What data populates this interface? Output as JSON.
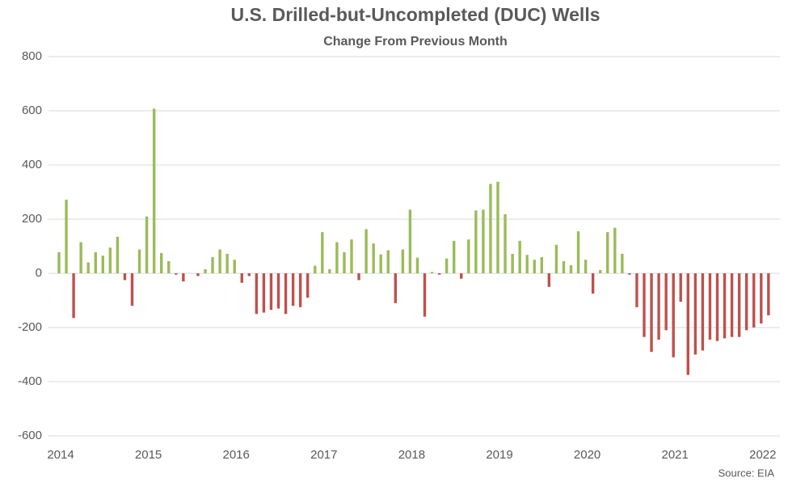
{
  "chart_data": {
    "type": "bar",
    "title": "U.S. Drilled-but-Uncompleted (DUC) Wells",
    "subtitle": "Change From Previous Month",
    "source": "Source: EIA",
    "categories": [
      "2014",
      null,
      null,
      null,
      null,
      null,
      null,
      null,
      null,
      null,
      null,
      null,
      "2015",
      null,
      null,
      null,
      null,
      null,
      null,
      null,
      null,
      null,
      null,
      null,
      "2016",
      null,
      null,
      null,
      null,
      null,
      null,
      null,
      null,
      null,
      null,
      null,
      "2017",
      null,
      null,
      null,
      null,
      null,
      null,
      null,
      null,
      null,
      null,
      null,
      "2018",
      null,
      null,
      null,
      null,
      null,
      null,
      null,
      null,
      null,
      null,
      null,
      "2019",
      null,
      null,
      null,
      null,
      null,
      null,
      null,
      null,
      null,
      null,
      null,
      "2020",
      null,
      null,
      null,
      null,
      null,
      null,
      null,
      null,
      null,
      null,
      null,
      "2021",
      null,
      null,
      null,
      null,
      null,
      null,
      null,
      null,
      null,
      null,
      null,
      "2022",
      null
    ],
    "values": [
      78,
      272,
      -165,
      115,
      40,
      78,
      65,
      95,
      135,
      -25,
      -120,
      88,
      210,
      608,
      75,
      45,
      -5,
      -30,
      0,
      -10,
      15,
      60,
      88,
      72,
      50,
      -35,
      -10,
      -150,
      -145,
      -135,
      -130,
      -150,
      -120,
      -125,
      -90,
      28,
      152,
      15,
      115,
      78,
      125,
      -25,
      163,
      110,
      70,
      85,
      -110,
      88,
      235,
      58,
      -160,
      5,
      -5,
      55,
      120,
      -20,
      125,
      232,
      235,
      330,
      338,
      218,
      72,
      120,
      68,
      50,
      60,
      -50,
      105,
      45,
      30,
      155,
      50,
      -75,
      12,
      152,
      168,
      72,
      -5,
      -125,
      -235,
      -290,
      -245,
      -210,
      -310,
      -105,
      -375,
      -300,
      -285,
      -245,
      -250,
      -240,
      -235,
      -235,
      -210,
      -200,
      -185,
      -155
    ],
    "colors": {
      "positive": "#9bbb59",
      "negative": "#c0504d"
    },
    "ylim": [
      -600,
      800
    ],
    "yticks": [
      -600,
      -400,
      -200,
      0,
      200,
      400,
      600,
      800
    ],
    "grid": true
  }
}
